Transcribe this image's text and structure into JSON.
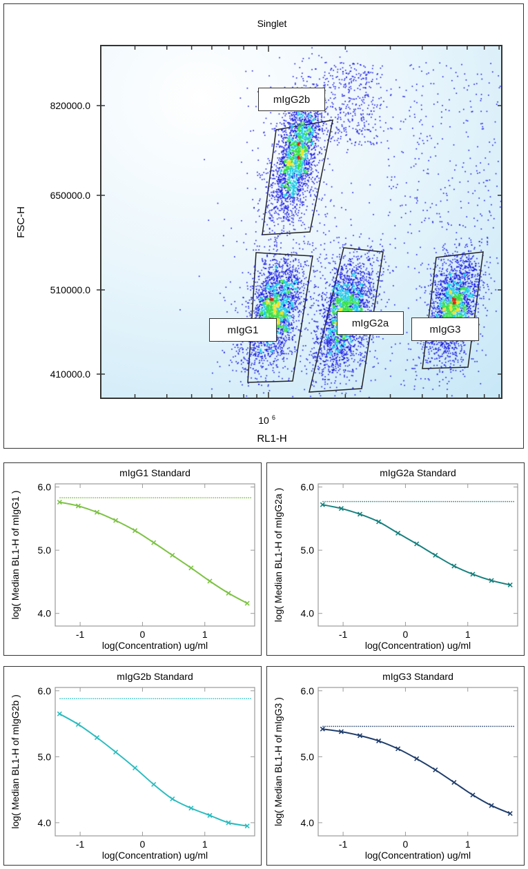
{
  "chart_data": [
    {
      "type": "scatter",
      "title": "Singlet",
      "xlabel": "RL1-H",
      "ylabel": "FSC-H",
      "x_scale": "log",
      "x_tick_labels": [
        {
          "base": "10",
          "exp": "6",
          "value": 1000000
        }
      ],
      "y_tick_labels": [
        "820000.0",
        "650000.0",
        "510000.0",
        "410000.0"
      ],
      "y_tick_values": [
        820000,
        650000,
        510000,
        410000
      ],
      "density_colormap": [
        "#1010e0",
        "#10c8e8",
        "#30e040",
        "#f0e020",
        "#e02010"
      ],
      "populations": [
        {
          "name": "mIgG2b",
          "x_log10_center": 6.11,
          "y_center": 730000
        },
        {
          "name": "mIgG1",
          "x_log10_center": 6.02,
          "y_center": 485000
        },
        {
          "name": "mIgG2a",
          "x_log10_center": 6.3,
          "y_center": 480000
        },
        {
          "name": "mIgG3",
          "x_log10_center": 6.72,
          "y_center": 490000
        }
      ],
      "gates": [
        "mIgG2b",
        "mIgG1",
        "mIgG2a",
        "mIgG3"
      ]
    },
    {
      "type": "line",
      "title": "mIgG1 Standard",
      "xlabel": "log(Concentration) ug/ml",
      "ylabel": "log( Median BL1-H of mIgG1 )",
      "xlim": [
        -1.4,
        1.8
      ],
      "ylim": [
        3.8,
        6.05
      ],
      "x_ticks": [
        -1,
        0,
        1
      ],
      "x_tick_labels": [
        "-1",
        "0",
        "1"
      ],
      "y_ticks": [
        4,
        5,
        6
      ],
      "y_tick_labels": [
        "4.0",
        "5.0",
        "6.0"
      ],
      "color": "#7cc242",
      "x": [
        -1.33,
        -1.03,
        -0.73,
        -0.43,
        -0.12,
        0.18,
        0.48,
        0.78,
        1.08,
        1.38,
        1.68
      ],
      "y": [
        5.76,
        5.7,
        5.6,
        5.47,
        5.31,
        5.12,
        4.92,
        4.72,
        4.51,
        4.32,
        4.16
      ],
      "baseline": 5.83
    },
    {
      "type": "line",
      "title": "mIgG2a Standard",
      "xlabel": "log(Concentration) ug/ml",
      "ylabel": "log( Median BL1-H of mIgG2a )",
      "xlim": [
        -1.4,
        1.8
      ],
      "ylim": [
        3.8,
        6.05
      ],
      "x_ticks": [
        -1,
        0,
        1
      ],
      "x_tick_labels": [
        "-1",
        "0",
        "1"
      ],
      "y_ticks": [
        4,
        5,
        6
      ],
      "y_tick_labels": [
        "4.0",
        "5.0",
        "6.0"
      ],
      "color": "#16807e",
      "x": [
        -1.33,
        -1.03,
        -0.73,
        -0.43,
        -0.12,
        0.18,
        0.48,
        0.78,
        1.08,
        1.38,
        1.68
      ],
      "y": [
        5.72,
        5.66,
        5.57,
        5.45,
        5.27,
        5.1,
        4.92,
        4.75,
        4.62,
        4.52,
        4.45
      ],
      "baseline": 5.77
    },
    {
      "type": "line",
      "title": "mIgG2b Standard",
      "xlabel": "log(Concentration) ug/ml",
      "ylabel": "log( Median BL1-H of mIgG2b )",
      "xlim": [
        -1.4,
        1.8
      ],
      "ylim": [
        3.8,
        6.05
      ],
      "x_ticks": [
        -1,
        0,
        1
      ],
      "x_tick_labels": [
        "-1",
        "0",
        "1"
      ],
      "y_ticks": [
        4,
        5,
        6
      ],
      "y_tick_labels": [
        "4.0",
        "5.0",
        "6.0"
      ],
      "color": "#2bbcbf",
      "x": [
        -1.33,
        -1.03,
        -0.73,
        -0.43,
        -0.12,
        0.18,
        0.48,
        0.78,
        1.08,
        1.38,
        1.68
      ],
      "y": [
        5.65,
        5.49,
        5.29,
        5.07,
        4.83,
        4.58,
        4.36,
        4.22,
        4.11,
        4.0,
        3.95
      ],
      "baseline": 5.88
    },
    {
      "type": "line",
      "title": "mIgG3 Standard",
      "xlabel": "log(Concentration) ug/ml",
      "ylabel": "log( Median BL1-H of mIgG3 )",
      "xlim": [
        -1.4,
        1.8
      ],
      "ylim": [
        3.8,
        6.05
      ],
      "x_ticks": [
        -1,
        0,
        1
      ],
      "x_tick_labels": [
        "-1",
        "0",
        "1"
      ],
      "y_ticks": [
        4,
        5,
        6
      ],
      "y_tick_labels": [
        "4.0",
        "5.0",
        "6.0"
      ],
      "color": "#1f3d6b",
      "x": [
        -1.33,
        -1.03,
        -0.73,
        -0.43,
        -0.12,
        0.18,
        0.48,
        0.78,
        1.08,
        1.38,
        1.68
      ],
      "y": [
        5.42,
        5.38,
        5.32,
        5.24,
        5.12,
        4.97,
        4.8,
        4.61,
        4.42,
        4.26,
        4.14
      ],
      "baseline": 5.46
    }
  ]
}
